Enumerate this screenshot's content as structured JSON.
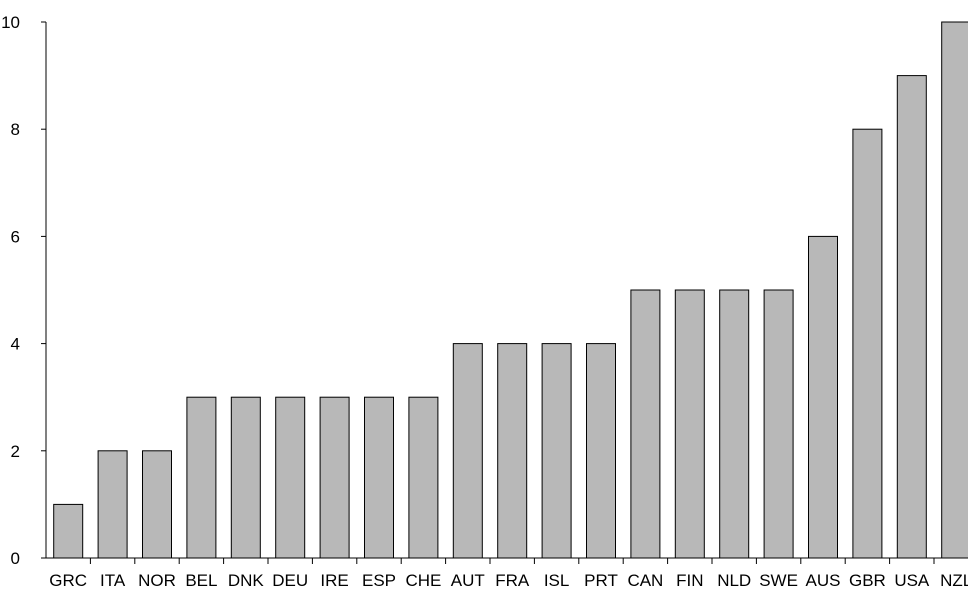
{
  "chart_data": {
    "type": "bar",
    "categories": [
      "GRC",
      "ITA",
      "NOR",
      "BEL",
      "DNK",
      "DEU",
      "IRE",
      "ESP",
      "CHE",
      "AUT",
      "FRA",
      "ISL",
      "PRT",
      "CAN",
      "FIN",
      "NLD",
      "SWE",
      "AUS",
      "GBR",
      "USA",
      "NZL"
    ],
    "values": [
      1,
      2,
      2,
      3,
      3,
      3,
      3,
      3,
      3,
      4,
      4,
      4,
      4,
      5,
      5,
      5,
      5,
      6,
      8,
      9,
      10
    ],
    "title": "",
    "xlabel": "",
    "ylabel": "",
    "ylim": [
      0,
      10
    ],
    "yticks": [
      "0",
      "2",
      "4",
      "6",
      "8",
      "10"
    ],
    "grid": false,
    "bar_color": "#b8b8b8"
  }
}
